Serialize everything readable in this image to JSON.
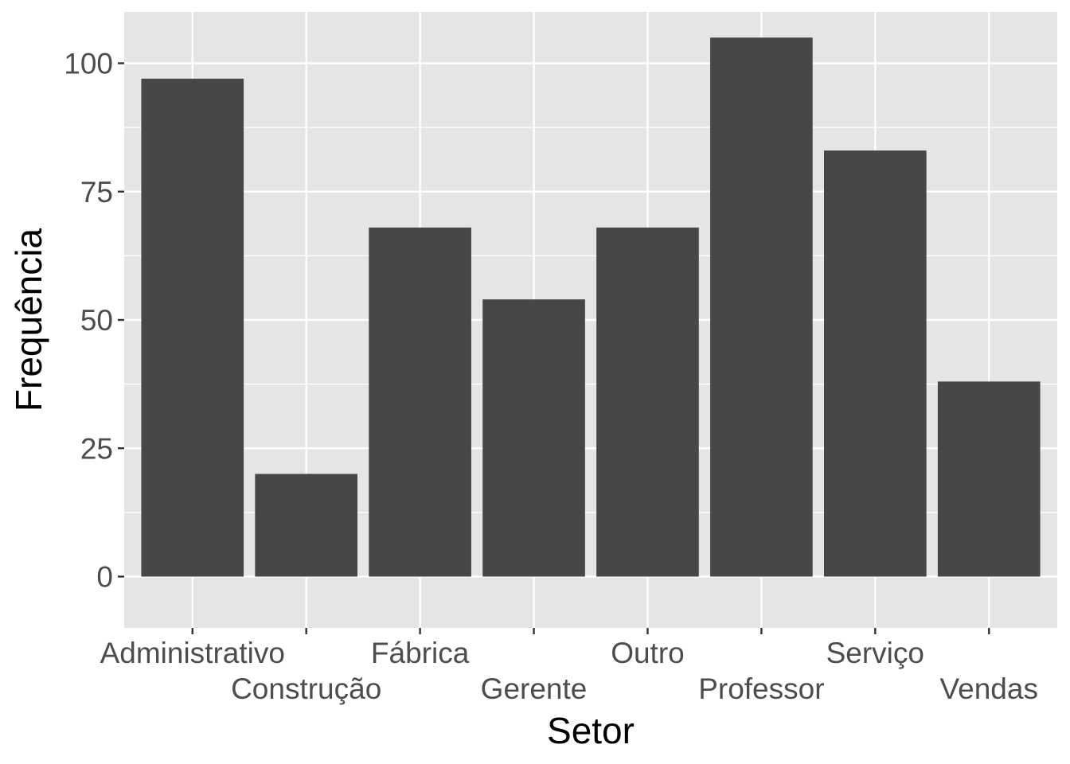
{
  "chart_data": {
    "type": "bar",
    "categories": [
      "Administrativo",
      "Construção",
      "Fábrica",
      "Gerente",
      "Outro",
      "Professor",
      "Serviço",
      "Vendas"
    ],
    "values": [
      97,
      20,
      68,
      54,
      68,
      105,
      83,
      38
    ],
    "xlabel": "Setor",
    "ylabel": "Frequência",
    "ylim": [
      -10,
      110
    ],
    "yticks": [
      0,
      25,
      50,
      75,
      100
    ],
    "grid": true,
    "legend": "none",
    "colors": {
      "bar": "#474747",
      "panel": "#e5e5e5",
      "grid": "#ffffff"
    }
  }
}
